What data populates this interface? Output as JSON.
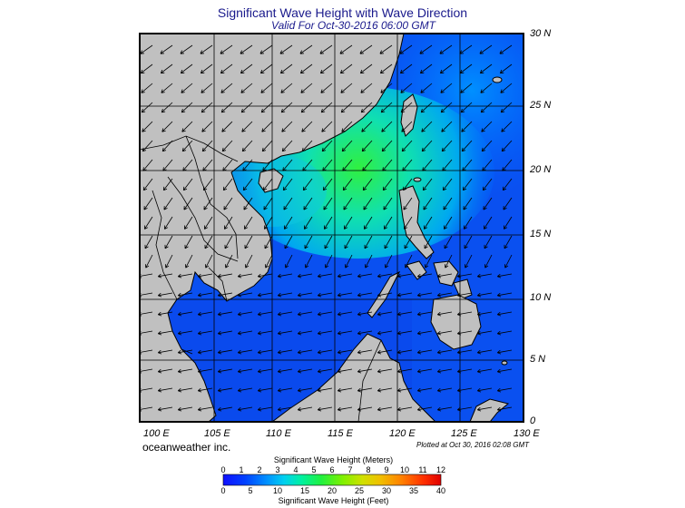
{
  "title": "Significant Wave Height with Wave Direction",
  "subtitle": "Valid For Oct-30-2016 06:00 GMT",
  "longitude_labels": [
    "100 E",
    "105 E",
    "110 E",
    "115 E",
    "120 E",
    "125 E",
    "130 E"
  ],
  "latitude_labels": [
    "30 N",
    "25 N",
    "20 N",
    "15 N",
    "10 N",
    "5 N",
    "0"
  ],
  "credit": "oceanweather inc.",
  "plotted_at": "Plotted at Oct 30, 2016 02:08 GMT",
  "colorbar": {
    "meters_label": "Significant Wave Height (Meters)",
    "feet_label": "Significant Wave Height (Feet)",
    "meter_ticks": [
      "0",
      "1",
      "2",
      "3",
      "4",
      "5",
      "6",
      "7",
      "8",
      "9",
      "10",
      "11",
      "12"
    ],
    "feet_ticks": [
      "0",
      "5",
      "10",
      "15",
      "20",
      "25",
      "30",
      "35",
      "40"
    ]
  },
  "colors": {
    "land": "#c0c0c0",
    "title_color": "#1a1a8c",
    "wave_low": "#0040ff",
    "wave_mid": "#00e0c0",
    "wave_high": "#30ff30"
  }
}
